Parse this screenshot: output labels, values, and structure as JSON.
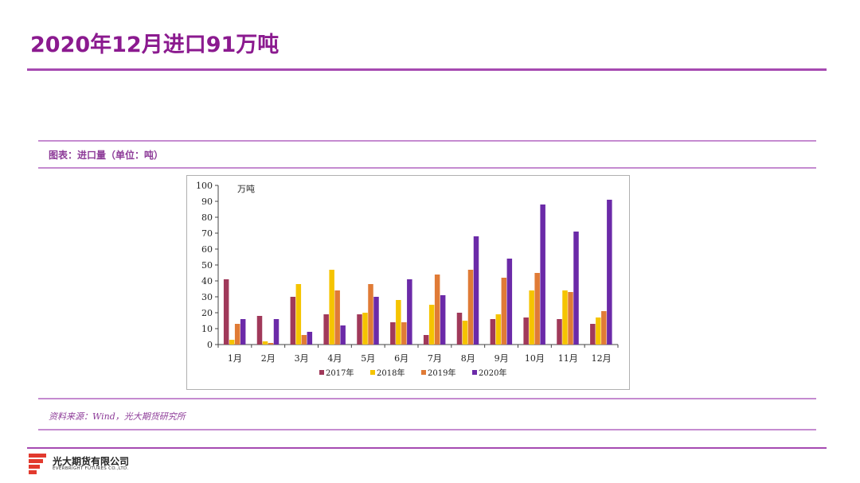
{
  "header": {
    "title": "2020年12月进口91万吨"
  },
  "chart_caption": "图表：进口量（单位：吨）",
  "source": "资料来源：Wind，光大期货研究所",
  "footer": {
    "company_cn": "光大期货有限公司",
    "company_en": "EVERBRIGHT FUTURES CO.,LTD."
  },
  "colors": {
    "accent": "#8b1a8f",
    "series_2017": "#a0395a",
    "series_2018": "#f5c400",
    "series_2019": "#e07b36",
    "series_2020": "#6b2aa8"
  },
  "chart_data": {
    "type": "bar",
    "unit_label": "万吨",
    "categories": [
      "1月",
      "2月",
      "3月",
      "4月",
      "5月",
      "6月",
      "7月",
      "8月",
      "9月",
      "10月",
      "11月",
      "12月"
    ],
    "ylim": [
      0,
      100
    ],
    "yticks": [
      0,
      10,
      20,
      30,
      40,
      50,
      60,
      70,
      80,
      90,
      100
    ],
    "grid": false,
    "legend_position": "bottom",
    "series": [
      {
        "name": "2017年",
        "color": "#a0395a",
        "values": [
          41,
          18,
          30,
          19,
          19,
          14,
          6,
          20,
          16,
          17,
          16,
          13
        ]
      },
      {
        "name": "2018年",
        "color": "#f5c400",
        "values": [
          3,
          2,
          38,
          47,
          20,
          28,
          25,
          15,
          19,
          34,
          34,
          17
        ]
      },
      {
        "name": "2019年",
        "color": "#e07b36",
        "values": [
          13,
          1,
          6,
          34,
          38,
          14,
          44,
          47,
          42,
          45,
          33,
          21
        ]
      },
      {
        "name": "2020年",
        "color": "#6b2aa8",
        "values": [
          16,
          16,
          8,
          12,
          30,
          41,
          31,
          68,
          54,
          88,
          71,
          91
        ]
      }
    ]
  }
}
